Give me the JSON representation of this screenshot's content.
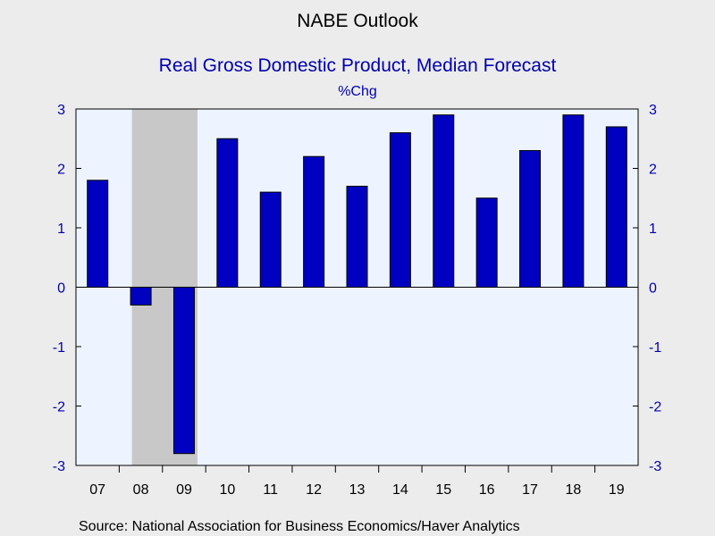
{
  "chart_data": {
    "type": "bar",
    "title": "NABE Outlook",
    "subtitle": "Real Gross Domestic Product, Median Forecast",
    "units": "%Chg",
    "source": "Source:  National Association for Business Economics/Haver Analytics",
    "categories": [
      "07",
      "08",
      "09",
      "10",
      "11",
      "12",
      "13",
      "14",
      "15",
      "16",
      "17",
      "18",
      "19"
    ],
    "values": [
      1.8,
      -0.3,
      -2.8,
      2.5,
      1.6,
      2.2,
      1.7,
      2.6,
      2.9,
      1.5,
      2.3,
      2.9,
      2.7
    ],
    "ylim": [
      -3,
      3
    ],
    "yticks": [
      "-3",
      "-2",
      "-1",
      "0",
      "1",
      "2",
      "3"
    ],
    "recession_shading": {
      "from": "08",
      "to": "09"
    },
    "grid": false,
    "colors": {
      "bar": "#0000c0",
      "bar_outline": "#000000",
      "plot_background": "#eef4ff",
      "recession": "#c8c8c8",
      "accent_text": "#0000b0",
      "figure_background": "#ececec"
    }
  }
}
